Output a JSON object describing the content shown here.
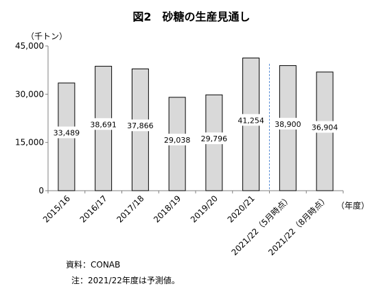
{
  "chart_data": {
    "type": "bar",
    "title": "図2　砂糖の生産見通し",
    "unit_label": "（千トン）",
    "xlabel": "（年度）",
    "ylabel": "",
    "ylim": [
      0,
      45000
    ],
    "yticks": [
      0,
      15000,
      30000,
      45000
    ],
    "ytick_labels": [
      "0",
      "15,000",
      "30,000",
      "45,000"
    ],
    "categories": [
      "2015/16",
      "2016/17",
      "2017/18",
      "2018/19",
      "2019/20",
      "2020/21",
      "2021/22（5月時点）",
      "2021/22（8月時点）"
    ],
    "values": [
      33489,
      38691,
      37866,
      29038,
      29796,
      41254,
      38900,
      36904
    ],
    "value_labels": [
      "33,489",
      "38,691",
      "37,866",
      "29,038",
      "29,796",
      "41,254",
      "38,900",
      "36,904"
    ],
    "grid": false,
    "legend": "none",
    "forecast_divider_after_index": 5,
    "colors": {
      "bar_fill": "#d9d9d9",
      "bar_stroke": "#000000",
      "divider": "#5b8fd6",
      "axis": "#7f7f7f"
    }
  },
  "footnotes": {
    "source": "資料：CONAB",
    "note": "注：2021/22年度は予測値。"
  }
}
